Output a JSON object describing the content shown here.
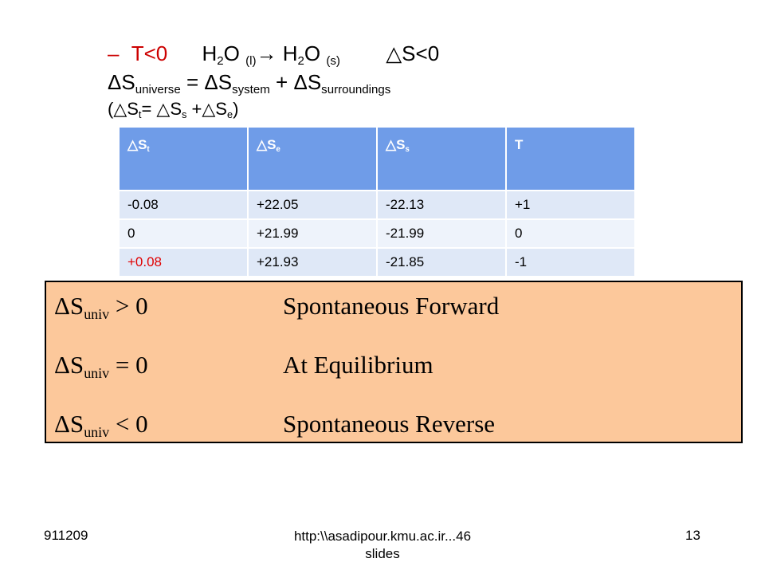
{
  "header": {
    "bullet": "–",
    "condition": "T<0",
    "reaction_left": "H",
    "reaction_sub2a": "2",
    "reaction_o_l": "O ",
    "state_l": "(l)",
    "arrow": "→ ",
    "reaction_right": "H",
    "reaction_sub2b": "2",
    "reaction_o_s": "O ",
    "state_s": "(s)",
    "delta_s": "△S<0",
    "eq_delta1": "ΔS",
    "eq_sub_universe": "universe",
    "eq_mid1": " = ΔS",
    "eq_sub_system": "system",
    "eq_mid2": " + ΔS",
    "eq_sub_surroundings": "surroundings",
    "short_open": "(△S",
    "short_sub_t": "t",
    "short_mid1": "= △S",
    "short_sub_s": "s",
    "short_mid2": " +△S",
    "short_sub_e": "e",
    "short_close": ")"
  },
  "table": {
    "headers": [
      {
        "sym": "△S",
        "sub": "t"
      },
      {
        "sym": "△S",
        "sub": "e"
      },
      {
        "sym": "△S",
        "sub": "s"
      },
      {
        "sym": "T",
        "sub": ""
      }
    ],
    "rows": [
      [
        "-0.08",
        "+22.05",
        "-22.13",
        "+1"
      ],
      [
        "0",
        "+21.99",
        "-21.99",
        "0"
      ],
      [
        "+0.08",
        "+21.93",
        "-21.85",
        "-1"
      ]
    ],
    "highlight_color": "#e00000"
  },
  "summary": {
    "rows": [
      {
        "sym": "ΔS",
        "sub": "univ",
        "rel": " > 0",
        "label": "Spontaneous Forward"
      },
      {
        "sym": "ΔS",
        "sub": "univ",
        "rel": " = 0",
        "label": "At Equilibrium"
      },
      {
        "sym": "ΔS",
        "sub": "univ",
        "rel": " < 0",
        "label": "Spontaneous Reverse"
      }
    ],
    "background": "#fcc89b"
  },
  "footer": {
    "left": "911209",
    "center_line1": "http:\\\\asadipour.kmu.ac.ir...46",
    "center_line2": "slides",
    "right": "13"
  }
}
